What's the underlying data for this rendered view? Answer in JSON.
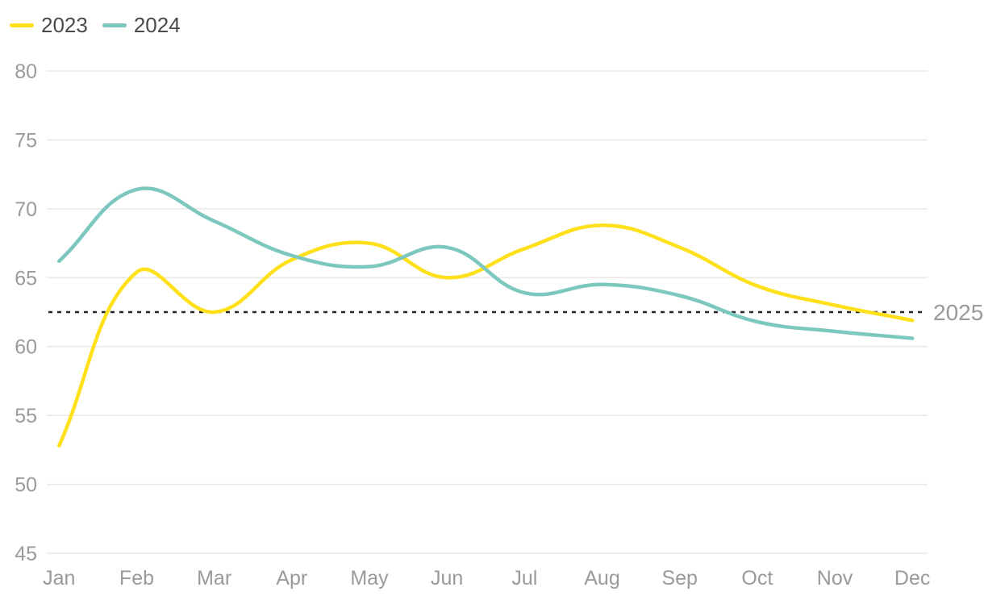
{
  "chart_data": {
    "type": "line",
    "title": "",
    "xlabel": "",
    "ylabel": "",
    "categories": [
      "Jan",
      "Feb",
      "Mar",
      "Apr",
      "May",
      "Jun",
      "Jul",
      "Aug",
      "Sep",
      "Oct",
      "Nov",
      "Dec"
    ],
    "series": [
      {
        "name": "2023",
        "color": "#FFE01A",
        "values": [
          52.8,
          65.4,
          62.5,
          66.3,
          67.5,
          65.0,
          67.1,
          68.8,
          67.2,
          64.4,
          63.0,
          61.9
        ]
      },
      {
        "name": "2024",
        "color": "#7CC7BE",
        "values": [
          66.2,
          71.4,
          69.1,
          66.6,
          65.8,
          67.2,
          63.9,
          64.5,
          63.7,
          61.8,
          61.1,
          60.6
        ]
      }
    ],
    "annotation": {
      "label": "2025",
      "value": 62.5,
      "line_style": "dotted",
      "color": "#262626",
      "label_color": "#999999"
    },
    "ylim": [
      45,
      80
    ],
    "yticks": [
      80,
      75,
      70,
      65,
      60,
      55,
      50,
      45
    ],
    "grid": "horizontal",
    "legend_position": "top-left",
    "curve": "smooth"
  },
  "styles": {
    "background": "#FFFFFF",
    "axis_label_color": "#9A9A9A",
    "grid_color": "#E9E9E9",
    "legend_text_color": "#4A4A4A"
  }
}
